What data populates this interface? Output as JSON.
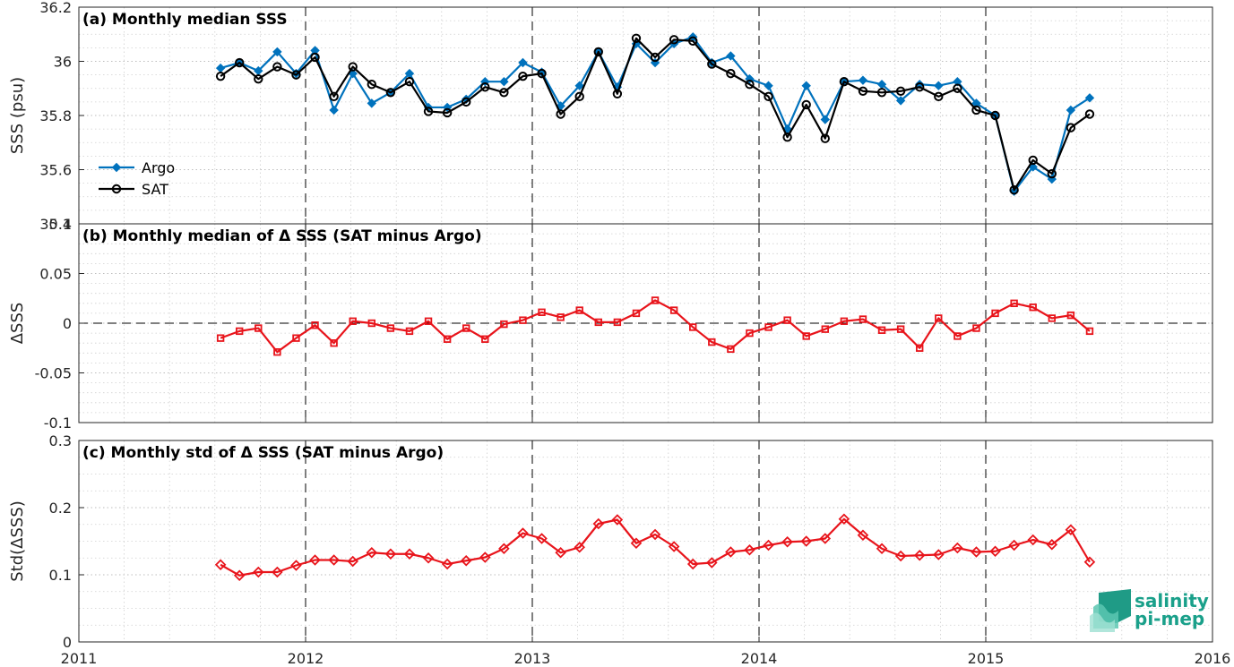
{
  "colors": {
    "argo": "#0072BD",
    "sat": "#000000",
    "delta": "#E8141B",
    "logo": "#1aa08a"
  },
  "logo": {
    "line1": "salinity",
    "line2": "pi-mep",
    "icon": "salinity-wave-logo-icon"
  },
  "chart_data": [
    {
      "type": "line",
      "title": "(a) Monthly median SSS",
      "ylabel": "SSS (psu)",
      "xlim": [
        2011,
        2016
      ],
      "ylim": [
        35.4,
        36.2
      ],
      "yticks": [
        "35.4",
        "35.6",
        "35.8",
        "36",
        "36.2"
      ],
      "xticks": [
        "2011",
        "2012",
        "2013",
        "2014",
        "2015",
        "2016"
      ],
      "grid": true,
      "legend": "bottom-left",
      "x": [
        "2011-08",
        "2011-09",
        "2011-10",
        "2011-11",
        "2011-12",
        "2012-01",
        "2012-02",
        "2012-03",
        "2012-04",
        "2012-05",
        "2012-06",
        "2012-07",
        "2012-08",
        "2012-09",
        "2012-10",
        "2012-11",
        "2012-12",
        "2013-01",
        "2013-02",
        "2013-03",
        "2013-04",
        "2013-05",
        "2013-06",
        "2013-07",
        "2013-08",
        "2013-09",
        "2013-10",
        "2013-11",
        "2013-12",
        "2014-01",
        "2014-02",
        "2014-03",
        "2014-04",
        "2014-05",
        "2014-06",
        "2014-07",
        "2014-08",
        "2014-09",
        "2014-10",
        "2014-11",
        "2014-12",
        "2015-01",
        "2015-02",
        "2015-03",
        "2015-04",
        "2015-05",
        "2015-06"
      ],
      "series": [
        {
          "name": "Argo",
          "marker": "diamond",
          "values": [
            35.975,
            35.995,
            35.965,
            36.035,
            35.955,
            36.04,
            35.82,
            35.955,
            35.845,
            35.885,
            35.955,
            35.83,
            35.83,
            35.86,
            35.925,
            35.925,
            35.995,
            35.96,
            35.835,
            35.91,
            36.035,
            35.905,
            36.065,
            35.995,
            36.065,
            36.09,
            35.995,
            36.02,
            35.935,
            35.91,
            35.75,
            35.91,
            35.785,
            35.925,
            35.93,
            35.915,
            35.855,
            35.915,
            35.91,
            35.925,
            35.845,
            35.8,
            35.52,
            35.61,
            35.565,
            35.82,
            35.865
          ]
        },
        {
          "name": "SAT",
          "marker": "circle",
          "values": [
            35.945,
            35.995,
            35.935,
            35.98,
            35.95,
            36.015,
            35.87,
            35.98,
            35.915,
            35.885,
            35.925,
            35.815,
            35.81,
            35.85,
            35.905,
            35.885,
            35.945,
            35.955,
            35.805,
            35.87,
            36.035,
            35.88,
            36.085,
            36.015,
            36.08,
            36.075,
            35.99,
            35.955,
            35.915,
            35.87,
            35.72,
            35.84,
            35.715,
            35.925,
            35.89,
            35.885,
            35.89,
            35.905,
            35.87,
            35.9,
            35.82,
            35.8,
            35.525,
            35.635,
            35.585,
            35.755,
            35.805
          ]
        }
      ]
    },
    {
      "type": "line",
      "title": "(b) Monthly median of Δ SSS (SAT minus Argo)",
      "ylabel": "ΔSSS",
      "xlim": [
        2011,
        2016
      ],
      "ylim": [
        -0.1,
        0.1
      ],
      "yticks": [
        "-0.1",
        "-0.05",
        "0",
        "0.05",
        "0.1"
      ],
      "xticks": [
        "2011",
        "2012",
        "2013",
        "2014",
        "2015",
        "2016"
      ],
      "grid": true,
      "zero_line": true,
      "x": [
        "2011-08",
        "2011-09",
        "2011-10",
        "2011-11",
        "2011-12",
        "2012-01",
        "2012-02",
        "2012-03",
        "2012-04",
        "2012-05",
        "2012-06",
        "2012-07",
        "2012-08",
        "2012-09",
        "2012-10",
        "2012-11",
        "2012-12",
        "2013-01",
        "2013-02",
        "2013-03",
        "2013-04",
        "2013-05",
        "2013-06",
        "2013-07",
        "2013-08",
        "2013-09",
        "2013-10",
        "2013-11",
        "2013-12",
        "2014-01",
        "2014-02",
        "2014-03",
        "2014-04",
        "2014-05",
        "2014-06",
        "2014-07",
        "2014-08",
        "2014-09",
        "2014-10",
        "2014-11",
        "2014-12",
        "2015-01",
        "2015-02",
        "2015-03",
        "2015-04",
        "2015-05",
        "2015-06"
      ],
      "series": [
        {
          "name": "",
          "marker": "square",
          "values": [
            -0.015,
            -0.008,
            -0.005,
            -0.029,
            -0.015,
            -0.002,
            -0.02,
            0.002,
            0,
            -0.005,
            -0.008,
            0.002,
            -0.016,
            -0.005,
            -0.016,
            -0.001,
            0.003,
            0.011,
            0.006,
            0.013,
            0.001,
            0.001,
            0.01,
            0.023,
            0.013,
            -0.004,
            -0.019,
            -0.026,
            -0.01,
            -0.004,
            0.003,
            -0.013,
            -0.006,
            0.002,
            0.004,
            -0.007,
            -0.006,
            -0.025,
            0.005,
            -0.013,
            -0.005,
            0.01,
            0.02,
            0.016,
            0.005,
            0.008,
            -0.008
          ]
        }
      ]
    },
    {
      "type": "line",
      "title": "(c) Monthly std of Δ SSS (SAT minus Argo)",
      "ylabel": "Std(ΔSSS)",
      "xlim": [
        2011,
        2016
      ],
      "ylim": [
        0,
        0.3
      ],
      "yticks": [
        "0",
        "0.1",
        "0.2",
        "0.3"
      ],
      "xticks": [
        "2011",
        "2012",
        "2013",
        "2014",
        "2015",
        "2016"
      ],
      "grid": true,
      "x": [
        "2011-08",
        "2011-09",
        "2011-10",
        "2011-11",
        "2011-12",
        "2012-01",
        "2012-02",
        "2012-03",
        "2012-04",
        "2012-05",
        "2012-06",
        "2012-07",
        "2012-08",
        "2012-09",
        "2012-10",
        "2012-11",
        "2012-12",
        "2013-01",
        "2013-02",
        "2013-03",
        "2013-04",
        "2013-05",
        "2013-06",
        "2013-07",
        "2013-08",
        "2013-09",
        "2013-10",
        "2013-11",
        "2013-12",
        "2014-01",
        "2014-02",
        "2014-03",
        "2014-04",
        "2014-05",
        "2014-06",
        "2014-07",
        "2014-08",
        "2014-09",
        "2014-10",
        "2014-11",
        "2014-12",
        "2015-01",
        "2015-02",
        "2015-03",
        "2015-04",
        "2015-05",
        "2015-06"
      ],
      "series": [
        {
          "name": "",
          "marker": "diamond",
          "values": [
            0.115,
            0.099,
            0.104,
            0.104,
            0.114,
            0.122,
            0.122,
            0.12,
            0.133,
            0.131,
            0.131,
            0.125,
            0.116,
            0.121,
            0.126,
            0.139,
            0.162,
            0.154,
            0.133,
            0.141,
            0.176,
            0.182,
            0.147,
            0.16,
            0.142,
            0.116,
            0.118,
            0.134,
            0.137,
            0.144,
            0.149,
            0.15,
            0.154,
            0.183,
            0.159,
            0.139,
            0.128,
            0.129,
            0.13,
            0.14,
            0.134,
            0.135,
            0.144,
            0.152,
            0.145,
            0.167,
            0.119
          ]
        }
      ]
    }
  ]
}
